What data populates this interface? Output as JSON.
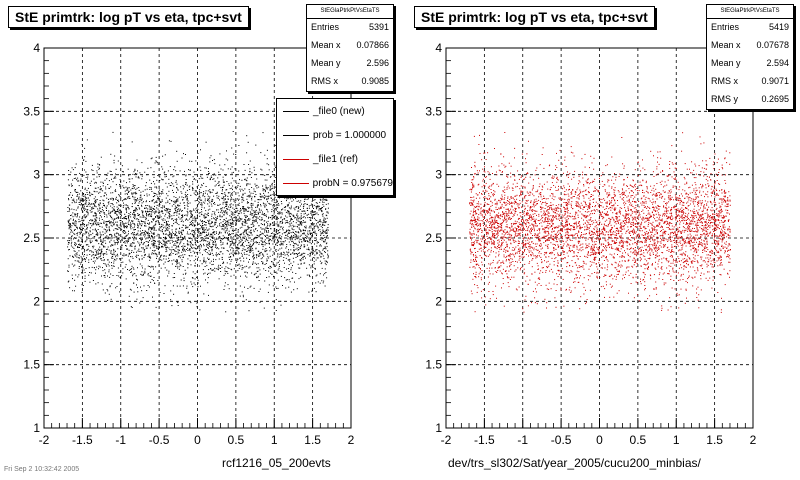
{
  "panels": [
    {
      "title": "StE primtrk: log pT vs eta, tpc+svt",
      "stats_header": "StEGlaPtrkPtVsEtaTS",
      "stats": [
        {
          "label": "Entries",
          "value": "5391"
        },
        {
          "label": "Mean x",
          "value": "0.07866"
        },
        {
          "label": "Mean y",
          "value": "2.596"
        },
        {
          "label": "RMS x",
          "value": "0.9085"
        }
      ],
      "xtitle": "rcf1216_05_200evts"
    },
    {
      "title": "StE primtrk: log pT vs eta, tpc+svt",
      "stats_header": "StEGlaPtrkPtVsEtaTS",
      "stats": [
        {
          "label": "Entries",
          "value": "5419"
        },
        {
          "label": "Mean x",
          "value": "0.07678"
        },
        {
          "label": "Mean y",
          "value": "2.594"
        },
        {
          "label": "RMS x",
          "value": "0.9071"
        },
        {
          "label": "RMS y",
          "value": "0.2695"
        }
      ],
      "xtitle": "dev/trs_sl302/Sat/year_2005/cucu200_minbias/"
    }
  ],
  "legend": [
    {
      "label": "_file0 (new)",
      "color": "#000000"
    },
    {
      "label": "prob = 1.000000",
      "color": "#000000"
    },
    {
      "label": "_file1 (ref)",
      "color": "#cc0000"
    },
    {
      "label": "probN = 0.975679",
      "color": "#cc0000"
    }
  ],
  "footer": "Fri Sep 2 10:32:42 2005",
  "chart_data": [
    {
      "type": "scatter",
      "title": "StE primtrk: log pT vs eta, tpc+svt",
      "xlabel": "rcf1216_05_200evts",
      "ylabel": "",
      "xlim": [
        -2,
        2
      ],
      "ylim": [
        1,
        4
      ],
      "xticks": [
        "-2",
        "-1.5",
        "-1",
        "-0.5",
        "0",
        "0.5",
        "1",
        "1.5",
        "2"
      ],
      "yticks": [
        "1",
        "1.5",
        "2",
        "2.5",
        "3",
        "3.5",
        "4"
      ],
      "grid": true,
      "marker_color": "#000000",
      "entries": 5391,
      "mean_x": 0.07866,
      "mean_y": 2.596,
      "rms_x": 0.9085,
      "rms_y": 0.27,
      "x_range": [
        -1.7,
        1.7
      ],
      "y_range": [
        1.9,
        3.6
      ]
    },
    {
      "type": "scatter",
      "title": "StE primtrk: log pT vs eta, tpc+svt",
      "xlabel": "dev/trs_sl302/Sat/year_2005/cucu200_minbias/",
      "ylabel": "",
      "xlim": [
        -2,
        2
      ],
      "ylim": [
        1,
        4
      ],
      "xticks": [
        "-2",
        "-1.5",
        "-1",
        "-0.5",
        "0",
        "0.5",
        "1",
        "1.5",
        "2"
      ],
      "yticks": [
        "1",
        "1.5",
        "2",
        "2.5",
        "3",
        "3.5",
        "4"
      ],
      "grid": true,
      "marker_color": "#cc0000",
      "entries": 5419,
      "mean_x": 0.07678,
      "mean_y": 2.594,
      "rms_x": 0.9071,
      "rms_y": 0.2695,
      "x_range": [
        -1.7,
        1.7
      ],
      "y_range": [
        1.9,
        3.6
      ]
    }
  ]
}
